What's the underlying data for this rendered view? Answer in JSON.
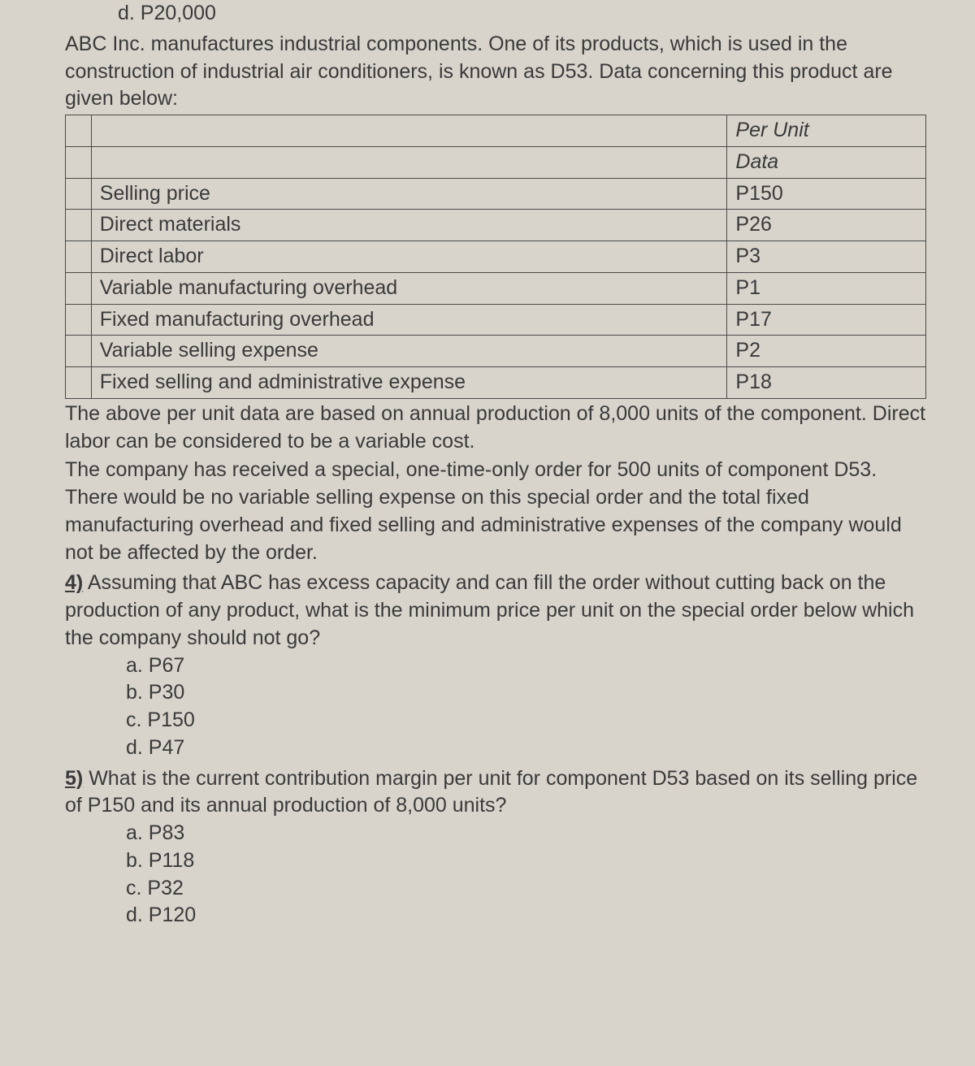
{
  "topAnswer": "d. P20,000",
  "intro": "ABC Inc. manufactures industrial components. One of its products, which is used in the construction of industrial air conditioners, is known as D53. Data concerning this product are given below:",
  "table": {
    "header1": "Per Unit",
    "header2": "Data",
    "rows": [
      {
        "label": "Selling price",
        "value": "P150"
      },
      {
        "label": "Direct materials",
        "value": "P26"
      },
      {
        "label": "Direct labor",
        "value": "P3"
      },
      {
        "label": "Variable manufacturing overhead",
        "value": "P1"
      },
      {
        "label": "Fixed manufacturing overhead",
        "value": "P17"
      },
      {
        "label": "Variable selling expense",
        "value": "P2"
      },
      {
        "label": "Fixed selling and administrative expense",
        "value": "P18"
      }
    ]
  },
  "afterTable1": "The above per unit data are based on annual production of 8,000 units of the component. Direct labor can be considered to be a variable cost.",
  "afterTable2": "The company has received a special, one-time-only order for 500 units of component D53. There would be no variable selling expense on this special order and the total fixed manufacturing overhead and fixed selling and administrative expenses of the company would not be affected by the order.",
  "q4": {
    "num": "4)",
    "text": "Assuming that ABC has excess capacity and can fill the order without cutting back on the production of any product, what is the minimum price per unit on the special order below which the company should not go?",
    "options": [
      "a. P67",
      "b. P30",
      "c. P150",
      "d. P47"
    ]
  },
  "q5": {
    "num": "5)",
    "text": "What is the current contribution margin per unit for component D53 based on its selling price of P150 and its annual production of 8,000 units?",
    "options": [
      "a. P83",
      "b. P118",
      "c. P32",
      "d. P120"
    ]
  }
}
